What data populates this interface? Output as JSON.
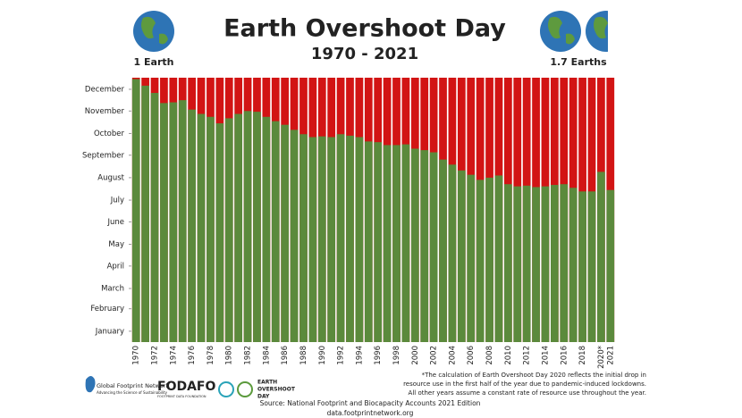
{
  "chart_data": {
    "type": "bar",
    "title": "Earth Overshoot Day",
    "subtitle": "1970 - 2021",
    "left_label": "1 Earth",
    "right_label": "1.7 Earths",
    "categories": [
      "1970",
      null,
      "1972",
      null,
      "1974",
      null,
      "1976",
      null,
      "1978",
      null,
      "1980",
      null,
      "1982",
      null,
      "1984",
      null,
      "1986",
      null,
      "1988",
      null,
      "1990",
      null,
      "1992",
      null,
      "1994",
      null,
      "1996",
      null,
      "1998",
      null,
      "2000",
      null,
      "2002",
      null,
      "2004",
      null,
      "2006",
      null,
      "2008",
      null,
      "2010",
      null,
      "2012",
      null,
      "2014",
      null,
      "2016",
      null,
      "2018",
      null,
      "2020*",
      "2021"
    ],
    "values": [
      363,
      354,
      344,
      330,
      331,
      334,
      321,
      315,
      311,
      302,
      309,
      315,
      319,
      318,
      311,
      305,
      300,
      293,
      287,
      283,
      284,
      283,
      287,
      285,
      283,
      277,
      276,
      272,
      272,
      273,
      267,
      265,
      262,
      252,
      245,
      237,
      231,
      224,
      227,
      230,
      218,
      215,
      216,
      214,
      215,
      217,
      218,
      213,
      208,
      208,
      235,
      210
    ],
    "color": "#5b8a3c",
    "background_color": "#d21414",
    "ylim": [
      0,
      365
    ],
    "yticks": [
      {
        "value": 15,
        "label": "January"
      },
      {
        "value": 46,
        "label": "February"
      },
      {
        "value": 74,
        "label": "March"
      },
      {
        "value": 105,
        "label": "April"
      },
      {
        "value": 135,
        "label": "May"
      },
      {
        "value": 166,
        "label": "June"
      },
      {
        "value": 196,
        "label": "July"
      },
      {
        "value": 227,
        "label": "August"
      },
      {
        "value": 258,
        "label": "September"
      },
      {
        "value": 288,
        "label": "October"
      },
      {
        "value": 319,
        "label": "November"
      },
      {
        "value": 349,
        "label": "December"
      }
    ],
    "footnote": [
      "*The calculation of Earth Overshoot Day 2020 reflects the initial drop in",
      "resource use in the first half of the year due to pandemic-induced lockdowns.",
      "All other years assume a constant rate of resource use throughout the year."
    ],
    "source": "Source: National Footprint and Biocapacity Accounts 2021 Edition",
    "url": "data.footprintnetwork.org",
    "logos": {
      "gfn": "Global Footprint Network",
      "gfn_tagline": "Advancing the Science of Sustainability",
      "fodafo": "FODAFO",
      "fodafo_sub": "FOOTPRINT DATA FOUNDATION",
      "eod1": "EARTH",
      "eod2": "OVERSHOOT",
      "eod3": "DAY"
    }
  }
}
